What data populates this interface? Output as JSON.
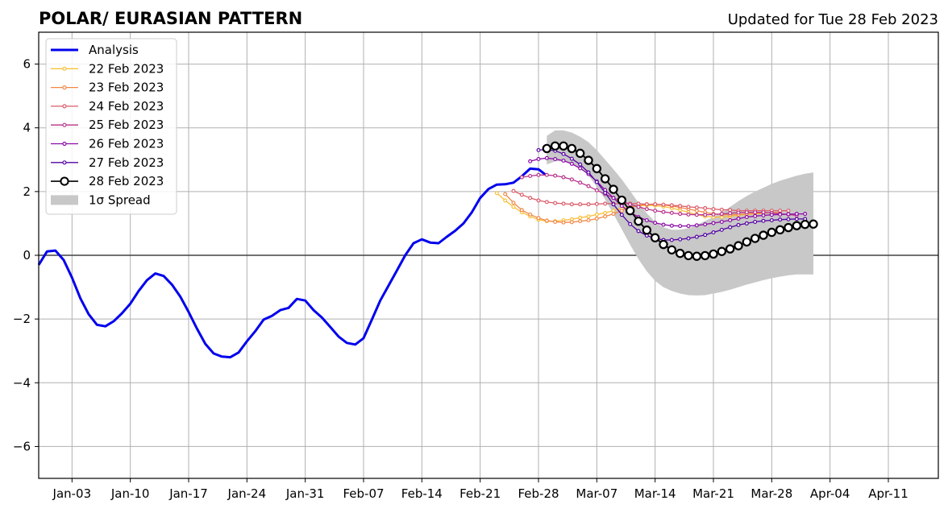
{
  "chart_data": {
    "type": "line",
    "title": "POLAR/ EURASIAN  PATTERN",
    "subtitle": "Updated for Tue 28 Feb 2023",
    "xlabel": "",
    "ylabel": "",
    "x_axis": {
      "type": "date",
      "range": [
        "2022-12-30",
        "2023-04-17"
      ],
      "ticks": [
        {
          "date": "2023-01-03",
          "label": "Jan-03"
        },
        {
          "date": "2023-01-10",
          "label": "Jan-10"
        },
        {
          "date": "2023-01-17",
          "label": "Jan-17"
        },
        {
          "date": "2023-01-24",
          "label": "Jan-24"
        },
        {
          "date": "2023-01-31",
          "label": "Jan-31"
        },
        {
          "date": "2023-02-07",
          "label": "Feb-07"
        },
        {
          "date": "2023-02-14",
          "label": "Feb-14"
        },
        {
          "date": "2023-02-21",
          "label": "Feb-21"
        },
        {
          "date": "2023-02-28",
          "label": "Feb-28"
        },
        {
          "date": "2023-03-07",
          "label": "Mar-07"
        },
        {
          "date": "2023-03-14",
          "label": "Mar-14"
        },
        {
          "date": "2023-03-21",
          "label": "Mar-21"
        },
        {
          "date": "2023-03-28",
          "label": "Mar-28"
        },
        {
          "date": "2023-04-04",
          "label": "Apr-04"
        },
        {
          "date": "2023-04-11",
          "label": "Apr-11"
        }
      ]
    },
    "y_axis": {
      "range": [
        -7,
        7
      ],
      "ticks": [
        {
          "value": -6,
          "label": "−6"
        },
        {
          "value": -4,
          "label": "−4"
        },
        {
          "value": -2,
          "label": "−2"
        },
        {
          "value": 0,
          "label": "0"
        },
        {
          "value": 2,
          "label": "2"
        },
        {
          "value": 4,
          "label": "4"
        },
        {
          "value": 6,
          "label": "6"
        }
      ]
    },
    "grid": true,
    "zero_line": true,
    "legend_position": "upper-left",
    "analysis": {
      "name": "Analysis",
      "color": "#0000ee",
      "start_date": "2022-12-30",
      "values": [
        -0.3,
        0.12,
        0.15,
        -0.15,
        -0.7,
        -1.35,
        -1.85,
        -2.18,
        -2.23,
        -2.07,
        -1.82,
        -1.52,
        -1.12,
        -0.78,
        -0.57,
        -0.65,
        -0.92,
        -1.3,
        -1.78,
        -2.3,
        -2.78,
        -3.08,
        -3.18,
        -3.2,
        -3.05,
        -2.7,
        -2.38,
        -2.02,
        -1.9,
        -1.72,
        -1.65,
        -1.37,
        -1.42,
        -1.72,
        -1.95,
        -2.25,
        -2.55,
        -2.75,
        -2.8,
        -2.6,
        -2.02,
        -1.42,
        -0.95,
        -0.48,
        0.0,
        0.38,
        0.5,
        0.4,
        0.38,
        0.58,
        0.77,
        1.0,
        1.35,
        1.8,
        2.08,
        2.22,
        2.23,
        2.28,
        2.48,
        2.72,
        2.7,
        2.5
      ]
    },
    "spread": {
      "name": "1σ Spread",
      "color": "#c8c8c8",
      "start_date": "2023-03-01",
      "upper": [
        3.75,
        3.92,
        3.92,
        3.85,
        3.72,
        3.55,
        3.3,
        3.0,
        2.7,
        2.38,
        2.02,
        1.65,
        1.32,
        1.05,
        0.88,
        0.8,
        0.8,
        0.85,
        0.95,
        1.08,
        1.2,
        1.35,
        1.52,
        1.7,
        1.86,
        2.0,
        2.12,
        2.24,
        2.34,
        2.42,
        2.5,
        2.56,
        2.6
      ],
      "lower": [
        2.85,
        2.95,
        2.95,
        2.88,
        2.75,
        2.5,
        2.15,
        1.75,
        1.3,
        0.82,
        0.33,
        -0.12,
        -0.5,
        -0.8,
        -1.0,
        -1.12,
        -1.2,
        -1.25,
        -1.26,
        -1.25,
        -1.2,
        -1.15,
        -1.08,
        -1.0,
        -0.92,
        -0.85,
        -0.78,
        -0.72,
        -0.67,
        -0.63,
        -0.6,
        -0.6,
        -0.6
      ]
    },
    "series": [
      {
        "name": "22 Feb 2023",
        "color": "#f8c03b",
        "start_date": "2023-02-23",
        "values": [
          1.95,
          1.72,
          1.52,
          1.35,
          1.22,
          1.12,
          1.07,
          1.07,
          1.1,
          1.13,
          1.18,
          1.22,
          1.28,
          1.33,
          1.4,
          1.48,
          1.52,
          1.55,
          1.57,
          1.56,
          1.53,
          1.48,
          1.42,
          1.35,
          1.28,
          1.22,
          1.2,
          1.2,
          1.22,
          1.26,
          1.28,
          1.3,
          1.32,
          1.34,
          1.35
        ]
      },
      {
        "name": "23 Feb 2023",
        "color": "#f0884a",
        "start_date": "2023-02-24",
        "values": [
          1.92,
          1.65,
          1.42,
          1.28,
          1.17,
          1.09,
          1.05,
          1.03,
          1.04,
          1.07,
          1.1,
          1.15,
          1.22,
          1.3,
          1.4,
          1.5,
          1.56,
          1.6,
          1.6,
          1.58,
          1.55,
          1.5,
          1.45,
          1.4,
          1.35,
          1.3,
          1.28,
          1.27,
          1.28,
          1.3,
          1.32,
          1.33,
          1.34,
          1.35
        ]
      },
      {
        "name": "24 Feb 2023",
        "color": "#db5c68",
        "start_date": "2023-02-25",
        "values": [
          2.02,
          1.9,
          1.8,
          1.72,
          1.67,
          1.64,
          1.62,
          1.6,
          1.6,
          1.6,
          1.61,
          1.62,
          1.62,
          1.62,
          1.62,
          1.62,
          1.6,
          1.6,
          1.59,
          1.57,
          1.55,
          1.52,
          1.5,
          1.48,
          1.45,
          1.43,
          1.42,
          1.4,
          1.4,
          1.4,
          1.4,
          1.4,
          1.4,
          1.4
        ]
      },
      {
        "name": "25 Feb 2023",
        "color": "#b83289",
        "start_date": "2023-02-26",
        "values": [
          2.45,
          2.49,
          2.52,
          2.52,
          2.5,
          2.45,
          2.38,
          2.28,
          2.17,
          2.04,
          1.92,
          1.8,
          1.7,
          1.6,
          1.52,
          1.45,
          1.4,
          1.36,
          1.33,
          1.3,
          1.28,
          1.27,
          1.27,
          1.28,
          1.3,
          1.32,
          1.34,
          1.35,
          1.35,
          1.35,
          1.33,
          1.3,
          1.28,
          1.25
        ]
      },
      {
        "name": "26 Feb 2023",
        "color": "#8b0aa5",
        "start_date": "2023-02-27",
        "values": [
          2.95,
          3.02,
          3.05,
          3.02,
          2.97,
          2.87,
          2.73,
          2.55,
          2.32,
          2.05,
          1.8,
          1.55,
          1.35,
          1.2,
          1.1,
          1.02,
          0.96,
          0.93,
          0.92,
          0.92,
          0.94,
          0.97,
          1.01,
          1.05,
          1.1,
          1.15,
          1.2,
          1.23,
          1.25,
          1.27,
          1.28,
          1.29,
          1.3,
          1.3
        ]
      },
      {
        "name": "27 Feb 2023",
        "color": "#5302a3",
        "start_date": "2023-02-28",
        "values": [
          3.3,
          3.32,
          3.28,
          3.18,
          3.03,
          2.85,
          2.6,
          2.3,
          1.96,
          1.6,
          1.27,
          0.98,
          0.76,
          0.62,
          0.53,
          0.48,
          0.48,
          0.5,
          0.53,
          0.58,
          0.64,
          0.72,
          0.8,
          0.88,
          0.95,
          1.0,
          1.05,
          1.08,
          1.1,
          1.12,
          1.13,
          1.14,
          1.14
        ]
      },
      {
        "name": "28 Feb 2023",
        "color": "#000000",
        "start_date": "2023-03-01",
        "values": [
          3.35,
          3.43,
          3.43,
          3.35,
          3.2,
          2.98,
          2.72,
          2.4,
          2.07,
          1.73,
          1.4,
          1.07,
          0.79,
          0.55,
          0.34,
          0.17,
          0.06,
          -0.01,
          -0.03,
          -0.01,
          0.04,
          0.12,
          0.2,
          0.3,
          0.42,
          0.53,
          0.63,
          0.72,
          0.8,
          0.87,
          0.93,
          0.97,
          0.98
        ]
      }
    ]
  }
}
